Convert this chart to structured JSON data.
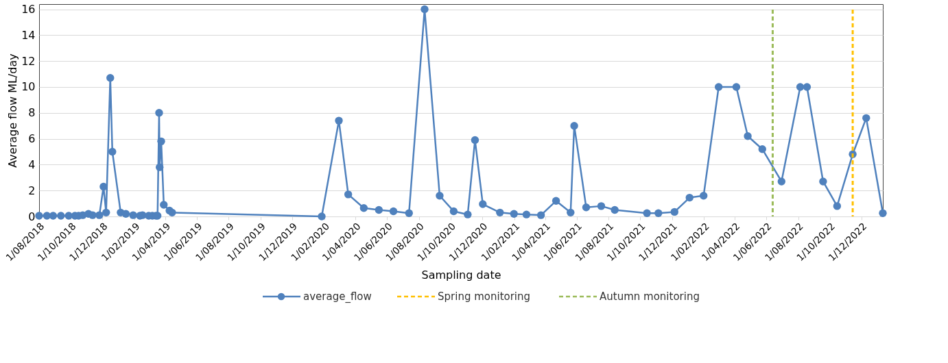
{
  "chart_data": {
    "type": "line",
    "xlabel": "Sampling date",
    "ylabel": "Average flow ML/day",
    "x": [
      "2018-08-01",
      "2018-08-16",
      "2018-08-28",
      "2018-09-12",
      "2018-09-27",
      "2018-10-09",
      "2018-10-16",
      "2018-10-24",
      "2018-11-04",
      "2018-11-12",
      "2018-11-25",
      "2018-12-03",
      "2018-12-08",
      "2018-12-16",
      "2018-12-20",
      "2019-01-05",
      "2019-01-15",
      "2019-01-29",
      "2019-02-11",
      "2019-02-16",
      "2019-02-28",
      "2019-03-07",
      "2019-03-14",
      "2019-03-17",
      "2019-03-20",
      "2019-03-21",
      "2019-03-24",
      "2019-03-29",
      "2019-04-09",
      "2019-04-14",
      "2020-01-27",
      "2020-02-29",
      "2020-03-18",
      "2020-04-17",
      "2020-05-16",
      "2020-06-13",
      "2020-07-13",
      "2020-08-12",
      "2020-09-10",
      "2020-10-07",
      "2020-11-03",
      "2020-11-17",
      "2020-12-02",
      "2021-01-04",
      "2021-01-31",
      "2021-02-24",
      "2021-03-24",
      "2021-04-22",
      "2021-05-20",
      "2021-05-27",
      "2021-06-19",
      "2021-07-18",
      "2021-08-13",
      "2021-10-14",
      "2021-11-05",
      "2021-12-06",
      "2022-01-04",
      "2022-01-31",
      "2022-03-01",
      "2022-04-04",
      "2022-04-26",
      "2022-05-24",
      "2022-06-30",
      "2022-08-05",
      "2022-08-18",
      "2022-09-18",
      "2022-10-15",
      "2022-11-14",
      "2022-12-10",
      "2023-01-11"
    ],
    "series": [
      {
        "name": "average_flow",
        "color": "#4f81bd",
        "values": [
          0.05,
          0.05,
          0.05,
          0.05,
          0.05,
          0.05,
          0.05,
          0.1,
          0.2,
          0.1,
          0.1,
          2.3,
          0.3,
          10.7,
          5.0,
          0.3,
          0.2,
          0.1,
          0.05,
          0.1,
          0.05,
          0.05,
          0.05,
          0.05,
          8.0,
          3.8,
          5.8,
          0.9,
          0.45,
          0.3,
          0.0,
          7.4,
          1.7,
          0.65,
          0.5,
          0.4,
          0.25,
          16.0,
          1.6,
          0.4,
          0.15,
          5.9,
          0.95,
          0.3,
          0.2,
          0.15,
          0.1,
          1.2,
          0.3,
          7.0,
          0.7,
          0.8,
          0.5,
          0.25,
          0.25,
          0.35,
          1.45,
          1.6,
          10.0,
          10.0,
          6.2,
          5.2,
          2.7,
          10.0,
          10.0,
          2.7,
          0.8,
          4.8,
          7.6,
          0.25
        ]
      }
    ],
    "ref_lines": [
      {
        "axis": "x",
        "value": "2022-11-14",
        "label": "Spring monitoring",
        "color": "#ffc000",
        "line_style": "dashed"
      },
      {
        "axis": "x",
        "value": "2022-06-13",
        "label": "Autumn monitoring",
        "color": "#9bbb59",
        "line_style": "dashed"
      }
    ],
    "xlim": [
      "2018-08-01",
      "2023-01-11"
    ],
    "xticks": [
      {
        "value": "2018-08-01",
        "label": "1/08/2018"
      },
      {
        "value": "2018-10-01",
        "label": "1/10/2018"
      },
      {
        "value": "2018-12-01",
        "label": "1/12/2018"
      },
      {
        "value": "2019-02-01",
        "label": "1/02/2019"
      },
      {
        "value": "2019-04-01",
        "label": "1/04/2019"
      },
      {
        "value": "2019-06-01",
        "label": "1/06/2019"
      },
      {
        "value": "2019-08-01",
        "label": "1/08/2019"
      },
      {
        "value": "2019-10-01",
        "label": "1/10/2019"
      },
      {
        "value": "2019-12-01",
        "label": "1/12/2019"
      },
      {
        "value": "2020-02-01",
        "label": "1/02/2020"
      },
      {
        "value": "2020-04-01",
        "label": "1/04/2020"
      },
      {
        "value": "2020-06-01",
        "label": "1/06/2020"
      },
      {
        "value": "2020-08-01",
        "label": "1/08/2020"
      },
      {
        "value": "2020-10-01",
        "label": "1/10/2020"
      },
      {
        "value": "2020-12-01",
        "label": "1/12/2020"
      },
      {
        "value": "2021-02-01",
        "label": "1/02/2021"
      },
      {
        "value": "2021-04-01",
        "label": "1/04/2021"
      },
      {
        "value": "2021-06-01",
        "label": "1/06/2021"
      },
      {
        "value": "2021-08-01",
        "label": "1/08/2021"
      },
      {
        "value": "2021-10-01",
        "label": "1/10/2021"
      },
      {
        "value": "2021-12-01",
        "label": "1/12/2021"
      },
      {
        "value": "2022-02-01",
        "label": "1/02/2022"
      },
      {
        "value": "2022-04-01",
        "label": "1/04/2022"
      },
      {
        "value": "2022-06-01",
        "label": "1/06/2022"
      },
      {
        "value": "2022-08-01",
        "label": "1/08/2022"
      },
      {
        "value": "2022-10-01",
        "label": "1/10/2022"
      },
      {
        "value": "2022-12-01",
        "label": "1/12/2022"
      }
    ],
    "ylim": [
      0,
      16.4
    ],
    "yticks": [
      0,
      2,
      4,
      6,
      8,
      10,
      12,
      14,
      16
    ],
    "grid": "y",
    "legend": "bottom",
    "marker": "circle",
    "line_style": "solid"
  }
}
